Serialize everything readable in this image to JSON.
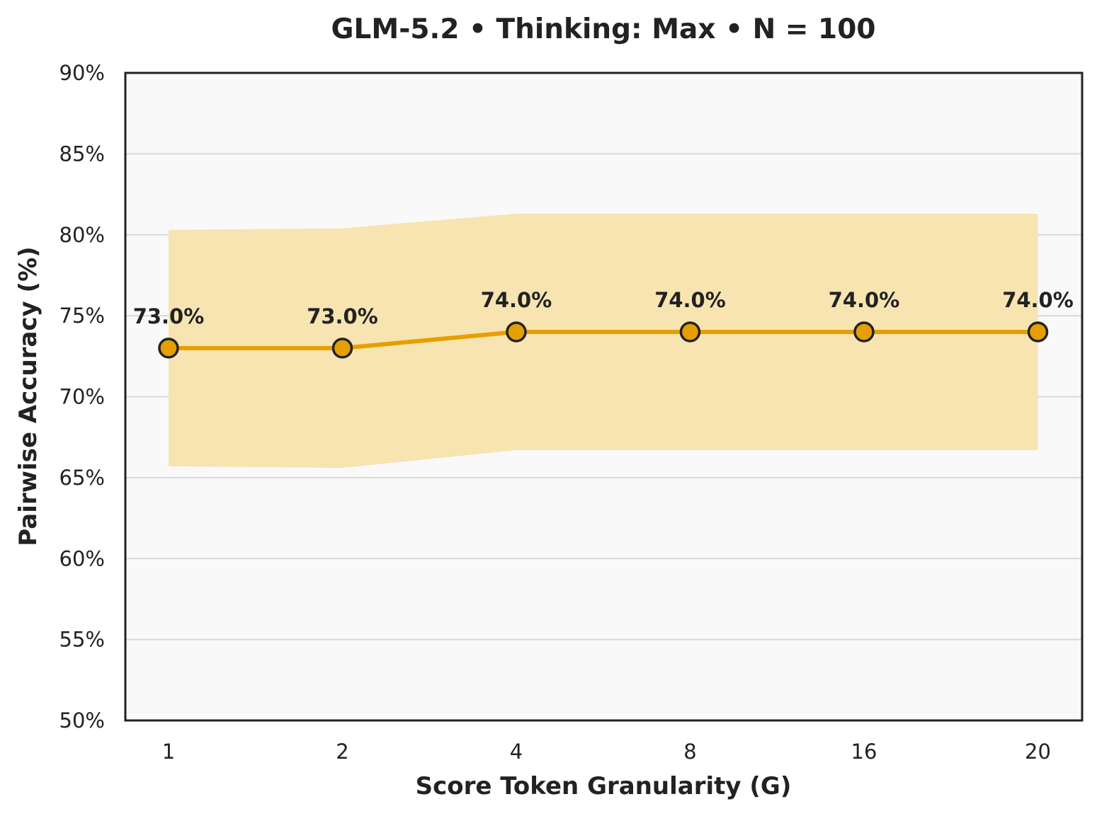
{
  "chart_data": {
    "type": "line",
    "title": "GLM-5.2 • Thinking: Max • N = 100",
    "xlabel": "Score Token Granularity (G)",
    "ylabel": "Pairwise Accuracy (%)",
    "categories": [
      "1",
      "2",
      "4",
      "8",
      "16",
      "20"
    ],
    "ylim": [
      50,
      90
    ],
    "yticks": [
      50,
      55,
      60,
      65,
      70,
      75,
      80,
      85,
      90
    ],
    "ytick_labels": [
      "50%",
      "55%",
      "60%",
      "65%",
      "70%",
      "75%",
      "80%",
      "85%",
      "90%"
    ],
    "grid": true,
    "series": [
      {
        "values": [
          73.0,
          73.0,
          74.0,
          74.0,
          74.0,
          74.0
        ],
        "labels": [
          "73.0%",
          "73.0%",
          "74.0%",
          "74.0%",
          "74.0%",
          "74.0%"
        ],
        "ci_lower": [
          65.7,
          65.6,
          66.7,
          66.7,
          66.7,
          66.7
        ],
        "ci_upper": [
          80.3,
          80.4,
          81.3,
          81.3,
          81.3,
          81.3
        ]
      }
    ],
    "colors": {
      "line": "#E69F00",
      "band": "#F7E4B1",
      "marker_edge": "#222222",
      "plot_bg": "#F9F9F9",
      "grid": "#D9D9D9",
      "axis": "#222222"
    }
  }
}
